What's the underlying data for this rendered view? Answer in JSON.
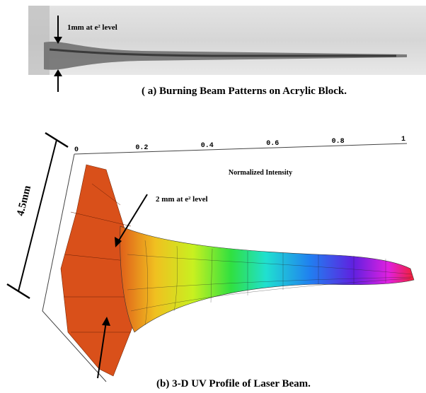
{
  "panel_a": {
    "annotation": "1mm at e² level",
    "caption": "( a)  Burning Beam Patterns on Acrylic Block."
  },
  "panel_b": {
    "axis_label": "Normalized  Intensity",
    "ticks": [
      "0",
      "0.2",
      "0.4",
      "0.6",
      "0.8",
      "1"
    ],
    "width_label": "4.5mm",
    "annotation": "2 mm at e² level",
    "caption": "(b)  3-D UV Profile of Laser Beam."
  }
}
